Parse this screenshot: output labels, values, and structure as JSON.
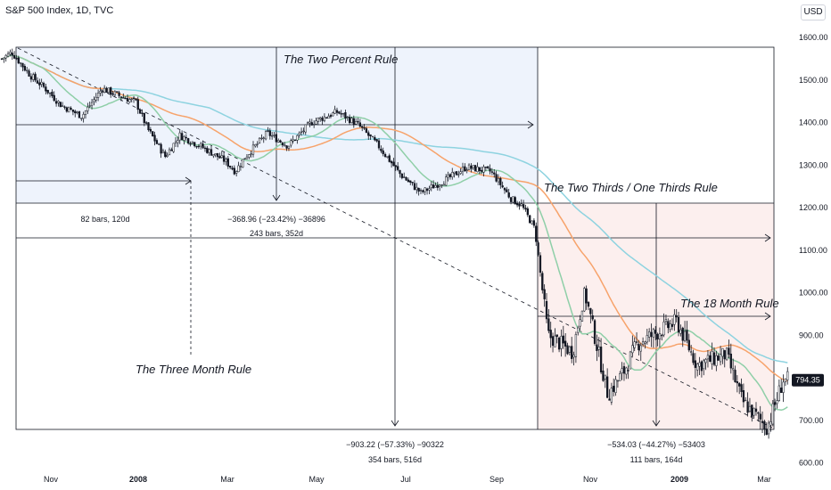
{
  "header": {
    "title": "S&P 500 Index, 1D, TVC"
  },
  "currency_button": "USD",
  "colors": {
    "candle": "#131722",
    "ma_fast": "#8fcfa8",
    "ma_mid": "#f7a36b",
    "ma_slow": "#8ed3e0",
    "zone_blue": "#eef3fc",
    "zone_red": "#fcefee",
    "price_tag_bg": "#131722"
  },
  "annotations": {
    "two_percent": "The Two Percent Rule",
    "three_month": "The Three Month Rule",
    "two_thirds": "The Two Thirds / One Thirds Rule",
    "eighteen_month": "The 18 Month Rule"
  },
  "measurements": {
    "m1": "82 bars, 120d",
    "m2": "−368.96 (−23.42%) −36896",
    "m3": "243 bars, 352d",
    "m4a": "−903.22 (−57.33%) −90322",
    "m4b": "354 bars, 516d",
    "m5a": "−534.03 (−44.27%) −53403",
    "m5b": "111 bars, 164d"
  },
  "last_price": "794.35",
  "chart_data": {
    "type": "candlestick",
    "title": "S&P 500 Index, 1D, TVC",
    "y_axis": {
      "ticks": [
        "1600.00",
        "1500.00",
        "1400.00",
        "1300.00",
        "1200.00",
        "1100.00",
        "1000.00",
        "900.00",
        "800.00",
        "700.00",
        "600.00"
      ],
      "range": [
        590,
        1660
      ]
    },
    "x_axis": {
      "ticks": [
        "Nov",
        "2008",
        "Mar",
        "May",
        "Jul",
        "Sep",
        "Nov",
        "2009",
        "Mar"
      ],
      "range": [
        "2007-10",
        "2009-03"
      ]
    },
    "close_series": {
      "dates": [
        "2007-10-01",
        "2007-10-09",
        "2007-10-22",
        "2007-11-01",
        "2007-11-12",
        "2007-11-26",
        "2007-12-10",
        "2007-12-20",
        "2008-01-02",
        "2008-01-10",
        "2008-01-22",
        "2008-02-01",
        "2008-02-15",
        "2008-03-03",
        "2008-03-10",
        "2008-03-17",
        "2008-04-01",
        "2008-04-15",
        "2008-05-01",
        "2008-05-19",
        "2008-06-02",
        "2008-06-16",
        "2008-07-01",
        "2008-07-15",
        "2008-08-01",
        "2008-08-15",
        "2008-09-01",
        "2008-09-15",
        "2008-09-22",
        "2008-10-01",
        "2008-10-10",
        "2008-10-27",
        "2008-11-04",
        "2008-11-20",
        "2008-12-01",
        "2008-12-10",
        "2009-01-06",
        "2009-01-20",
        "2009-02-09",
        "2009-02-20",
        "2009-03-09",
        "2009-03-20"
      ],
      "values": [
        1547,
        1565,
        1510,
        1480,
        1440,
        1415,
        1480,
        1465,
        1448,
        1385,
        1320,
        1370,
        1345,
        1310,
        1285,
        1320,
        1375,
        1345,
        1400,
        1425,
        1395,
        1345,
        1278,
        1235,
        1265,
        1295,
        1285,
        1220,
        1205,
        1150,
        900,
        860,
        1005,
        760,
        815,
        880,
        932,
        830,
        855,
        745,
        683,
        795
      ]
    },
    "moving_averages": [
      "fast MA (green)",
      "medium MA (orange)",
      "slow MA (cyan)"
    ],
    "legend": "none",
    "last_value": 794.35
  }
}
